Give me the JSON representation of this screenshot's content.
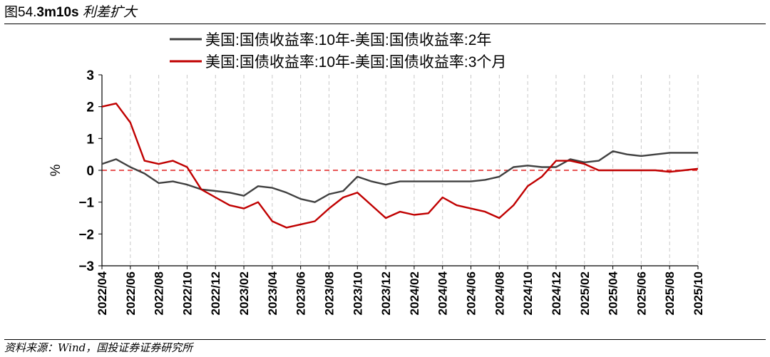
{
  "figure": {
    "title_prefix": "图54.",
    "title_bold": "3m10s",
    "title_text": "利差扩大",
    "source": "资料来源：Wind，国投证券证券研究所"
  },
  "chart_data": {
    "type": "line",
    "ylabel": "%",
    "ylim": [
      -3,
      3
    ],
    "yticks": [
      3,
      2,
      1,
      0,
      -1,
      -2,
      -3
    ],
    "ytick_labels": [
      "3",
      "2",
      "1",
      "0",
      "−1",
      "−2",
      "−3"
    ],
    "xlim": [
      "2022-04",
      "2025-10"
    ],
    "x_ticks": [
      "2022/04",
      "2022/06",
      "2022/08",
      "2022/10",
      "2022/12",
      "2023/02",
      "2023/04",
      "2023/06",
      "2023/08",
      "2023/10",
      "2023/12",
      "2024/02",
      "2024/04",
      "2024/06",
      "2024/08",
      "2024/10",
      "2024/12",
      "2025/02",
      "2025/04",
      "2025/06",
      "2025/08",
      "2025/10"
    ],
    "grid": "vertical dashed",
    "zero_line": "red dashed",
    "legend": "top",
    "series": [
      {
        "name": "美国:国债收益率:10年-美国:国债收益率:2年",
        "color": "#404040",
        "x": [
          "2022-04",
          "2022-05",
          "2022-06",
          "2022-07",
          "2022-08",
          "2022-09",
          "2022-10",
          "2022-11",
          "2022-12",
          "2023-01",
          "2023-02",
          "2023-03",
          "2023-04",
          "2023-05",
          "2023-06",
          "2023-07",
          "2023-08",
          "2023-09",
          "2023-10",
          "2023-11",
          "2023-12",
          "2024-01",
          "2024-02",
          "2024-03",
          "2024-04",
          "2024-05",
          "2024-06",
          "2024-07",
          "2024-08",
          "2024-09",
          "2024-10",
          "2024-11",
          "2024-12",
          "2025-01",
          "2025-02",
          "2025-03",
          "2025-04",
          "2025-05",
          "2025-06",
          "2025-07",
          "2025-08",
          "2025-09",
          "2025-10"
        ],
        "y": [
          0.2,
          0.35,
          0.1,
          -0.1,
          -0.4,
          -0.35,
          -0.45,
          -0.6,
          -0.65,
          -0.7,
          -0.8,
          -0.5,
          -0.55,
          -0.7,
          -0.9,
          -1.0,
          -0.75,
          -0.65,
          -0.2,
          -0.35,
          -0.45,
          -0.35,
          -0.35,
          -0.35,
          -0.35,
          -0.35,
          -0.35,
          -0.3,
          -0.2,
          0.1,
          0.15,
          0.1,
          0.1,
          0.35,
          0.25,
          0.3,
          0.6,
          0.5,
          0.45,
          0.5,
          0.55,
          0.55,
          0.55
        ]
      },
      {
        "name": "美国:国债收益率:10年-美国:国债收益率:3个月",
        "color": "#c00000",
        "x": [
          "2022-04",
          "2022-05",
          "2022-06",
          "2022-07",
          "2022-08",
          "2022-09",
          "2022-10",
          "2022-11",
          "2022-12",
          "2023-01",
          "2023-02",
          "2023-03",
          "2023-04",
          "2023-05",
          "2023-06",
          "2023-07",
          "2023-08",
          "2023-09",
          "2023-10",
          "2023-11",
          "2023-12",
          "2024-01",
          "2024-02",
          "2024-03",
          "2024-04",
          "2024-05",
          "2024-06",
          "2024-07",
          "2024-08",
          "2024-09",
          "2024-10",
          "2024-11",
          "2024-12",
          "2025-01",
          "2025-02",
          "2025-03",
          "2025-04",
          "2025-05",
          "2025-06",
          "2025-07",
          "2025-08",
          "2025-09",
          "2025-10"
        ],
        "y": [
          2.0,
          2.1,
          1.5,
          0.3,
          0.2,
          0.3,
          0.1,
          -0.6,
          -0.85,
          -1.1,
          -1.2,
          -1.0,
          -1.6,
          -1.8,
          -1.7,
          -1.6,
          -1.2,
          -0.85,
          -0.7,
          -1.1,
          -1.5,
          -1.3,
          -1.4,
          -1.35,
          -0.85,
          -1.1,
          -1.2,
          -1.3,
          -1.5,
          -1.1,
          -0.5,
          -0.2,
          0.3,
          0.3,
          0.2,
          0.0,
          0.0,
          0.0,
          0.0,
          0.0,
          -0.05,
          0.0,
          0.05
        ]
      }
    ]
  }
}
